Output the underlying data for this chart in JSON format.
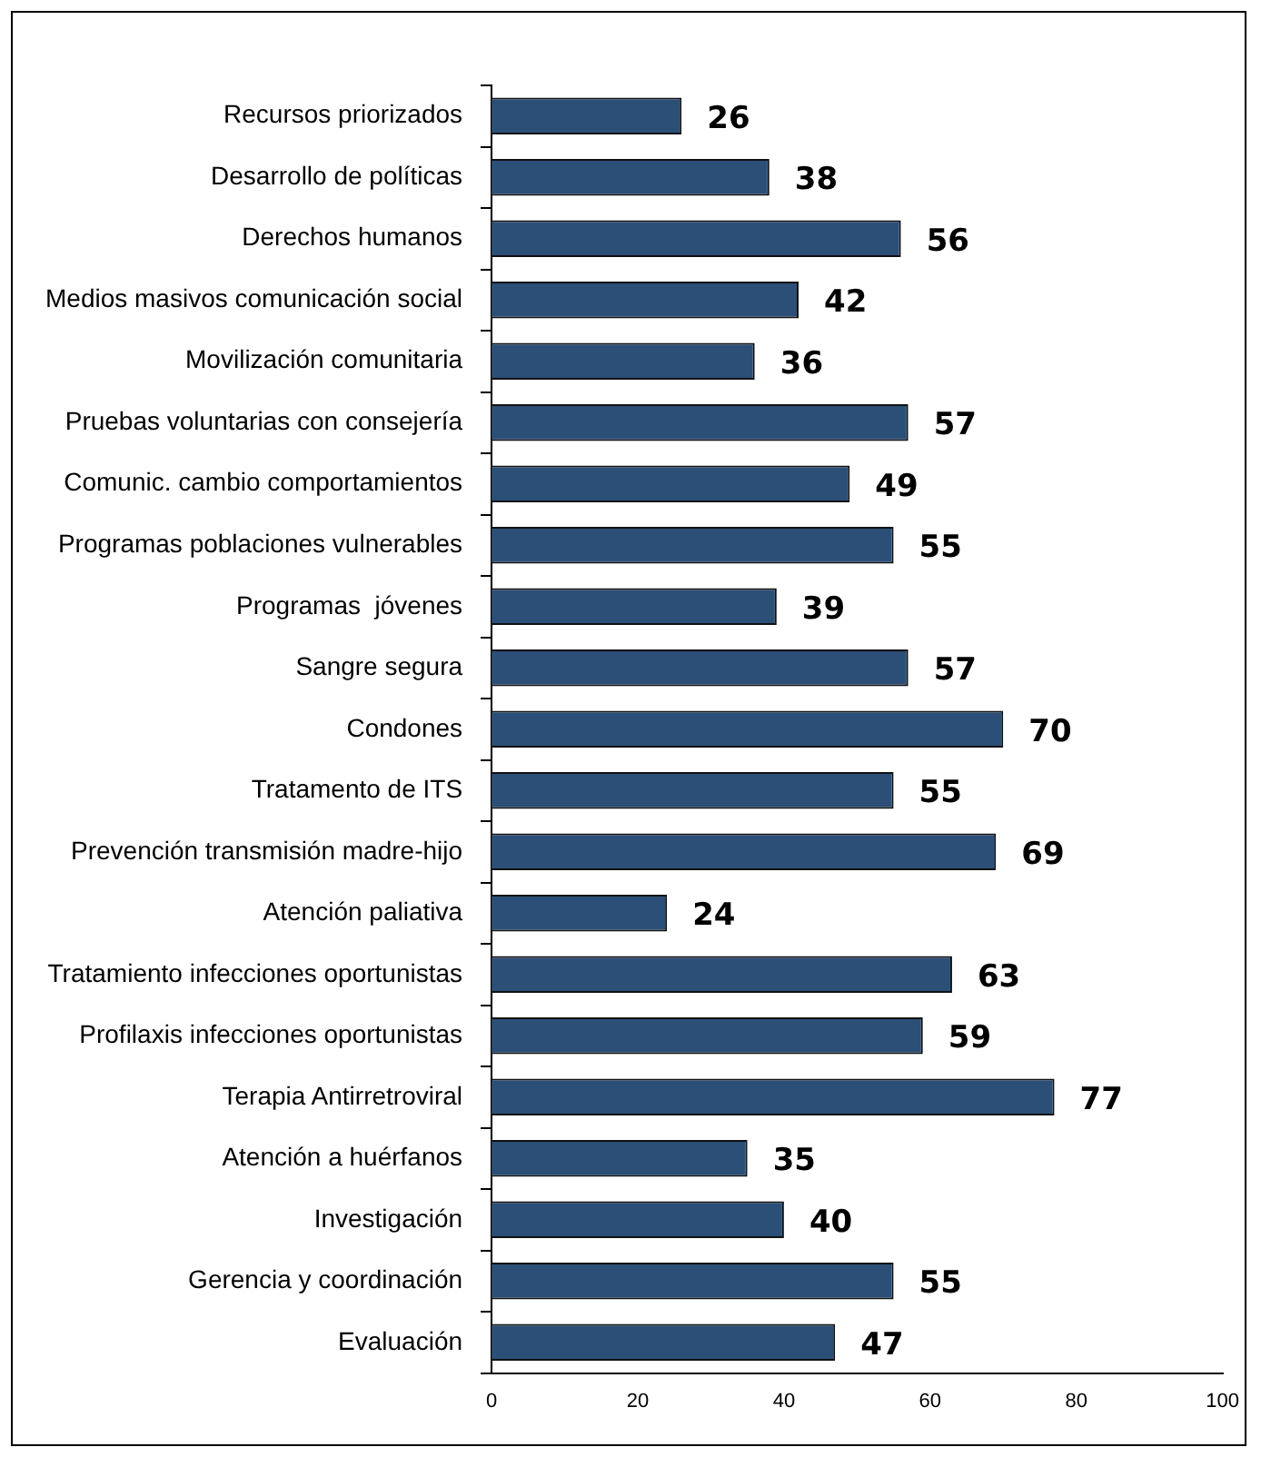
{
  "chart_data": {
    "type": "bar",
    "orientation": "horizontal",
    "categories": [
      "Recursos priorizados",
      "Desarrollo de políticas",
      "Derechos humanos",
      "Medios masivos comunicación social",
      "Movilización comunitaria",
      "Pruebas voluntarias con consejería",
      "Comunic. cambio comportamientos",
      "Programas poblaciones vulnerables",
      "Programas  jóvenes",
      "Sangre segura",
      "Condones",
      "Tratamento de ITS",
      "Prevención transmisión madre-hijo",
      "Atención paliativa",
      "Tratamiento infecciones oportunistas",
      "Profilaxis infecciones oportunistas",
      "Terapia Antirretroviral",
      "Atención a huérfanos",
      "Investigación",
      "Gerencia y coordinación",
      "Evaluación"
    ],
    "values": [
      26,
      38,
      56,
      42,
      36,
      57,
      49,
      55,
      39,
      57,
      70,
      55,
      69,
      24,
      63,
      59,
      77,
      35,
      40,
      55,
      47
    ],
    "color": "#2b4f77",
    "xlim": [
      0,
      100
    ],
    "xticks": [
      0,
      20,
      40,
      60,
      80,
      100
    ],
    "grid": false,
    "legend": false,
    "data_labels": true
  }
}
